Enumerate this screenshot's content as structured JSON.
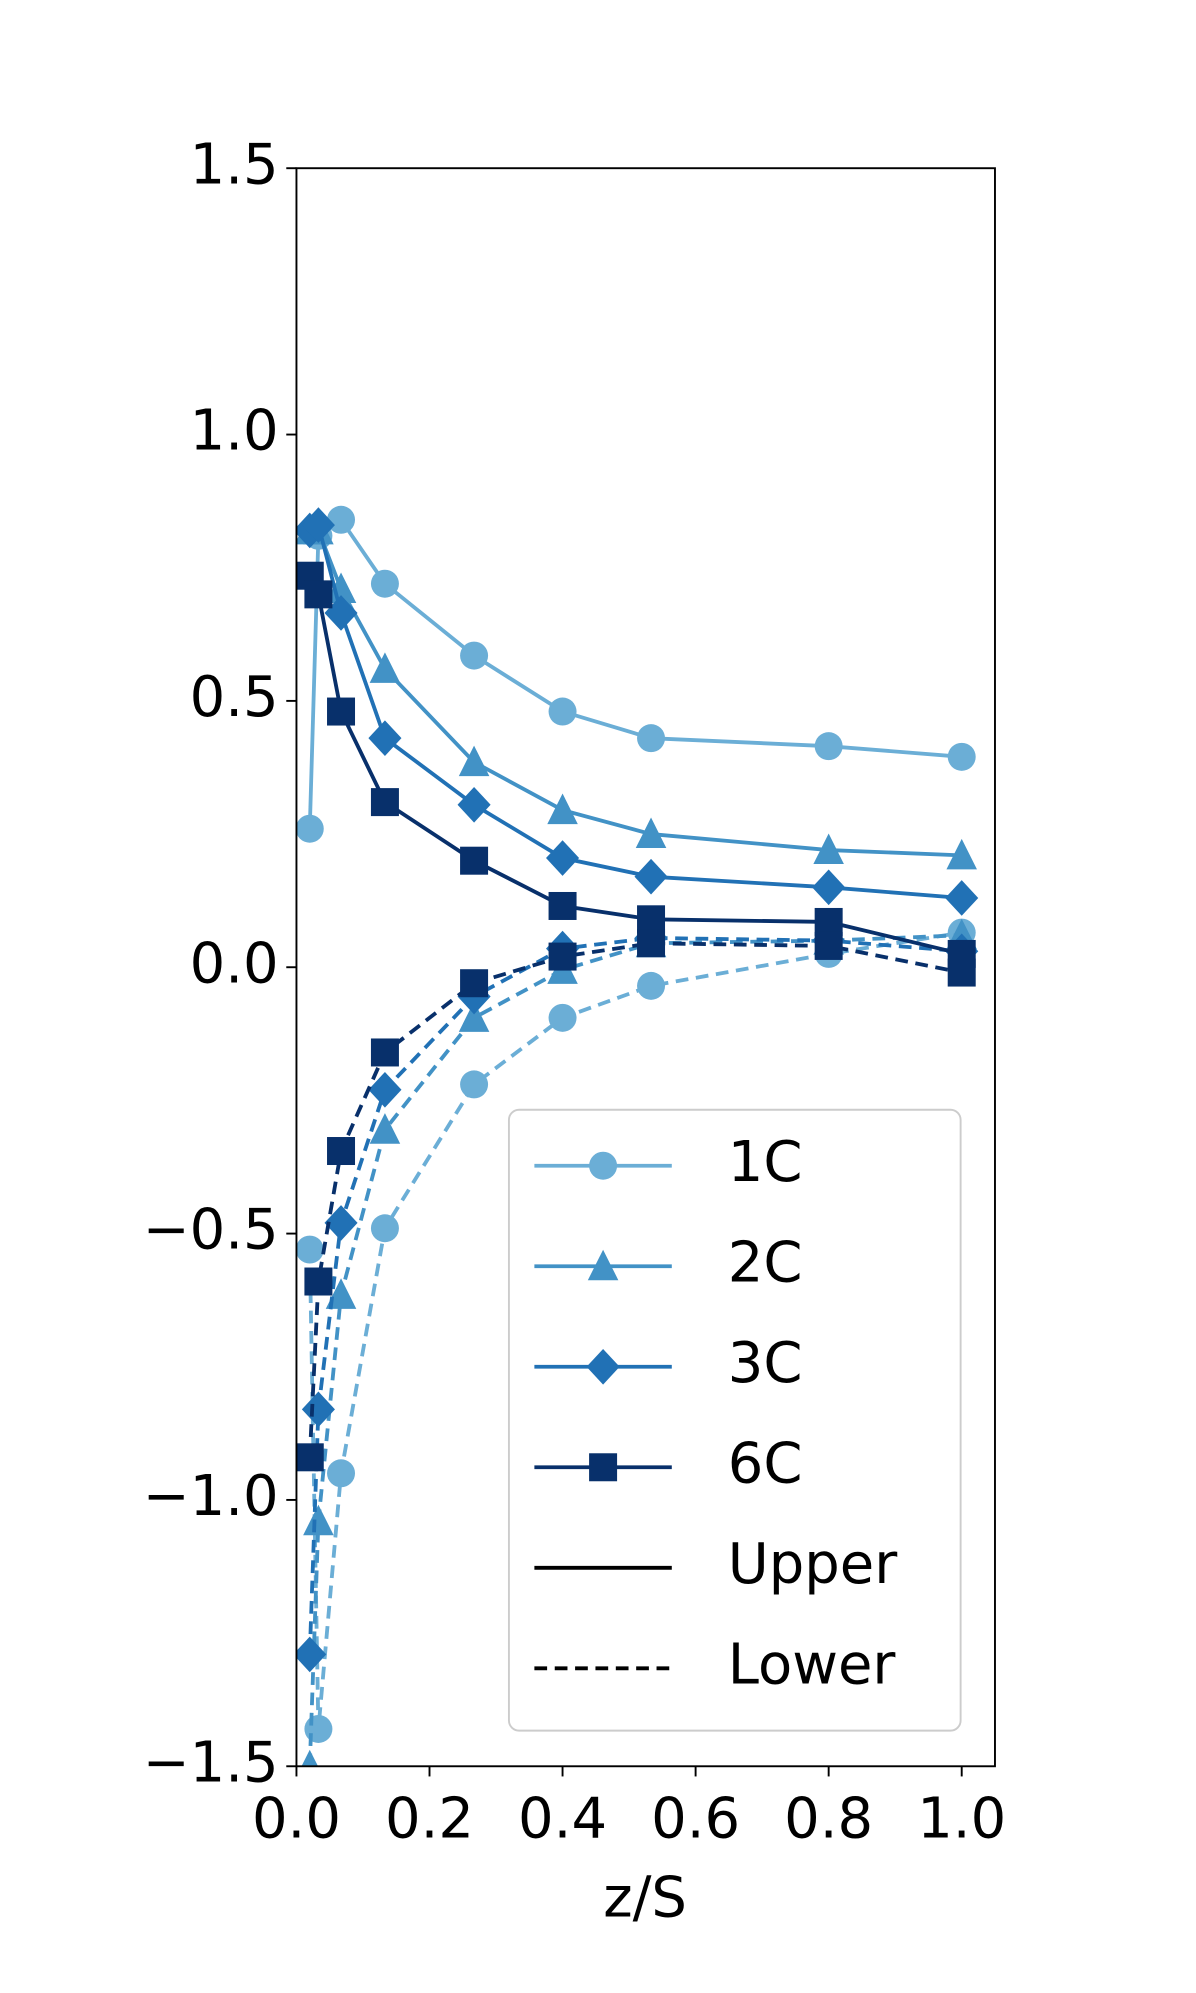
{
  "chart_data": {
    "type": "line",
    "x_label": "z/S",
    "x": [
      0.02,
      0.033,
      0.067,
      0.133,
      0.267,
      0.4,
      0.533,
      0.8,
      1.0
    ],
    "series": [
      {
        "name": "1C",
        "color": "#6baed6",
        "marker": "circle",
        "upper": [
          0.26,
          0.81,
          0.84,
          0.72,
          0.585,
          0.48,
          0.43,
          0.415,
          0.395
        ],
        "lower": [
          -0.53,
          -1.43,
          -0.95,
          -0.49,
          -0.22,
          -0.095,
          -0.035,
          0.025,
          0.065
        ]
      },
      {
        "name": "2C",
        "color": "#4292c6",
        "marker": "triangle",
        "upper": [
          0.82,
          0.82,
          0.71,
          0.56,
          0.385,
          0.295,
          0.25,
          0.22,
          0.21
        ],
        "lower": [
          -1.5,
          -1.04,
          -0.615,
          -0.305,
          -0.095,
          -0.005,
          0.045,
          0.05,
          0.06
        ]
      },
      {
        "name": "3C",
        "color": "#2171b5",
        "marker": "diamond",
        "upper": [
          0.82,
          0.83,
          0.665,
          0.43,
          0.305,
          0.205,
          0.17,
          0.15,
          0.13
        ],
        "lower": [
          -1.29,
          -0.83,
          -0.48,
          -0.23,
          -0.055,
          0.035,
          0.055,
          0.05,
          0.03
        ]
      },
      {
        "name": "6C",
        "color": "#08306b",
        "marker": "square",
        "upper": [
          0.735,
          0.7,
          0.48,
          0.31,
          0.2,
          0.115,
          0.09,
          0.085,
          0.025
        ],
        "lower": [
          -0.92,
          -0.59,
          -0.345,
          -0.16,
          -0.03,
          0.02,
          0.045,
          0.04,
          -0.01
        ]
      }
    ],
    "line_styles": [
      {
        "name": "Upper",
        "dash": "solid"
      },
      {
        "name": "Lower",
        "dash": "dashed"
      }
    ],
    "xlim": [
      0,
      1.05
    ],
    "ylim": [
      -1.5,
      1.5
    ],
    "xticks": [
      {
        "value": 0,
        "label": "0.0"
      },
      {
        "value": 0.2,
        "label": "0.2"
      },
      {
        "value": 0.4,
        "label": "0.4"
      },
      {
        "value": 0.6,
        "label": "0.6"
      },
      {
        "value": 0.8,
        "label": "0.8"
      },
      {
        "value": 1.0,
        "label": "1.0"
      }
    ],
    "yticks": [
      {
        "value": -1.5,
        "label": "−1.5"
      },
      {
        "value": -1.0,
        "label": "−1.0"
      },
      {
        "value": -0.5,
        "label": "−0.5"
      },
      {
        "value": 0,
        "label": "0.0"
      },
      {
        "value": 0.5,
        "label": "0.5"
      },
      {
        "value": 1.0,
        "label": "1.0"
      },
      {
        "value": 1.5,
        "label": "1.5"
      }
    ],
    "legend": "lower right"
  }
}
